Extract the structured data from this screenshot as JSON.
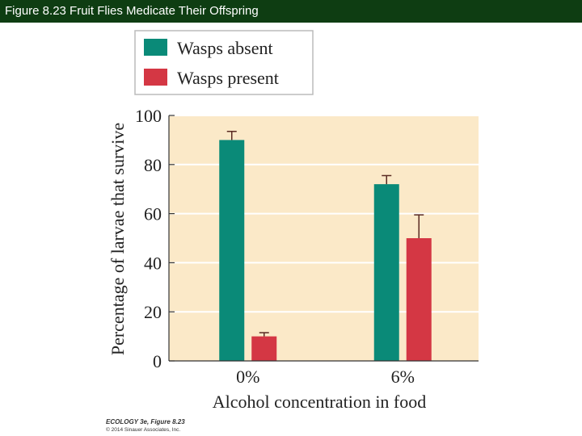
{
  "header": {
    "title": "Figure 8.23  Fruit Flies Medicate Their Offspring"
  },
  "credit": {
    "line1": "ECOLOGY 3e, Figure 8.23",
    "line2": "© 2014 Sinauer Associates, Inc."
  },
  "chart_data": {
    "type": "bar",
    "title": "",
    "xlabel": "Alcohol concentration in food",
    "ylabel": "Percentage of larvae that survive",
    "ylim": [
      0,
      100
    ],
    "yticks": [
      0,
      20,
      40,
      60,
      80,
      100
    ],
    "categories": [
      "0%",
      "6%"
    ],
    "legend_position": "top-left",
    "grid": true,
    "series": [
      {
        "name": "Wasps absent",
        "color": "#0a8a78",
        "values": [
          90,
          72
        ],
        "errors": [
          3.5,
          3.5
        ]
      },
      {
        "name": "Wasps present",
        "color": "#d43744",
        "values": [
          10,
          50
        ],
        "errors": [
          1.5,
          9.5
        ]
      }
    ],
    "background_color": "#fbe9c8"
  }
}
